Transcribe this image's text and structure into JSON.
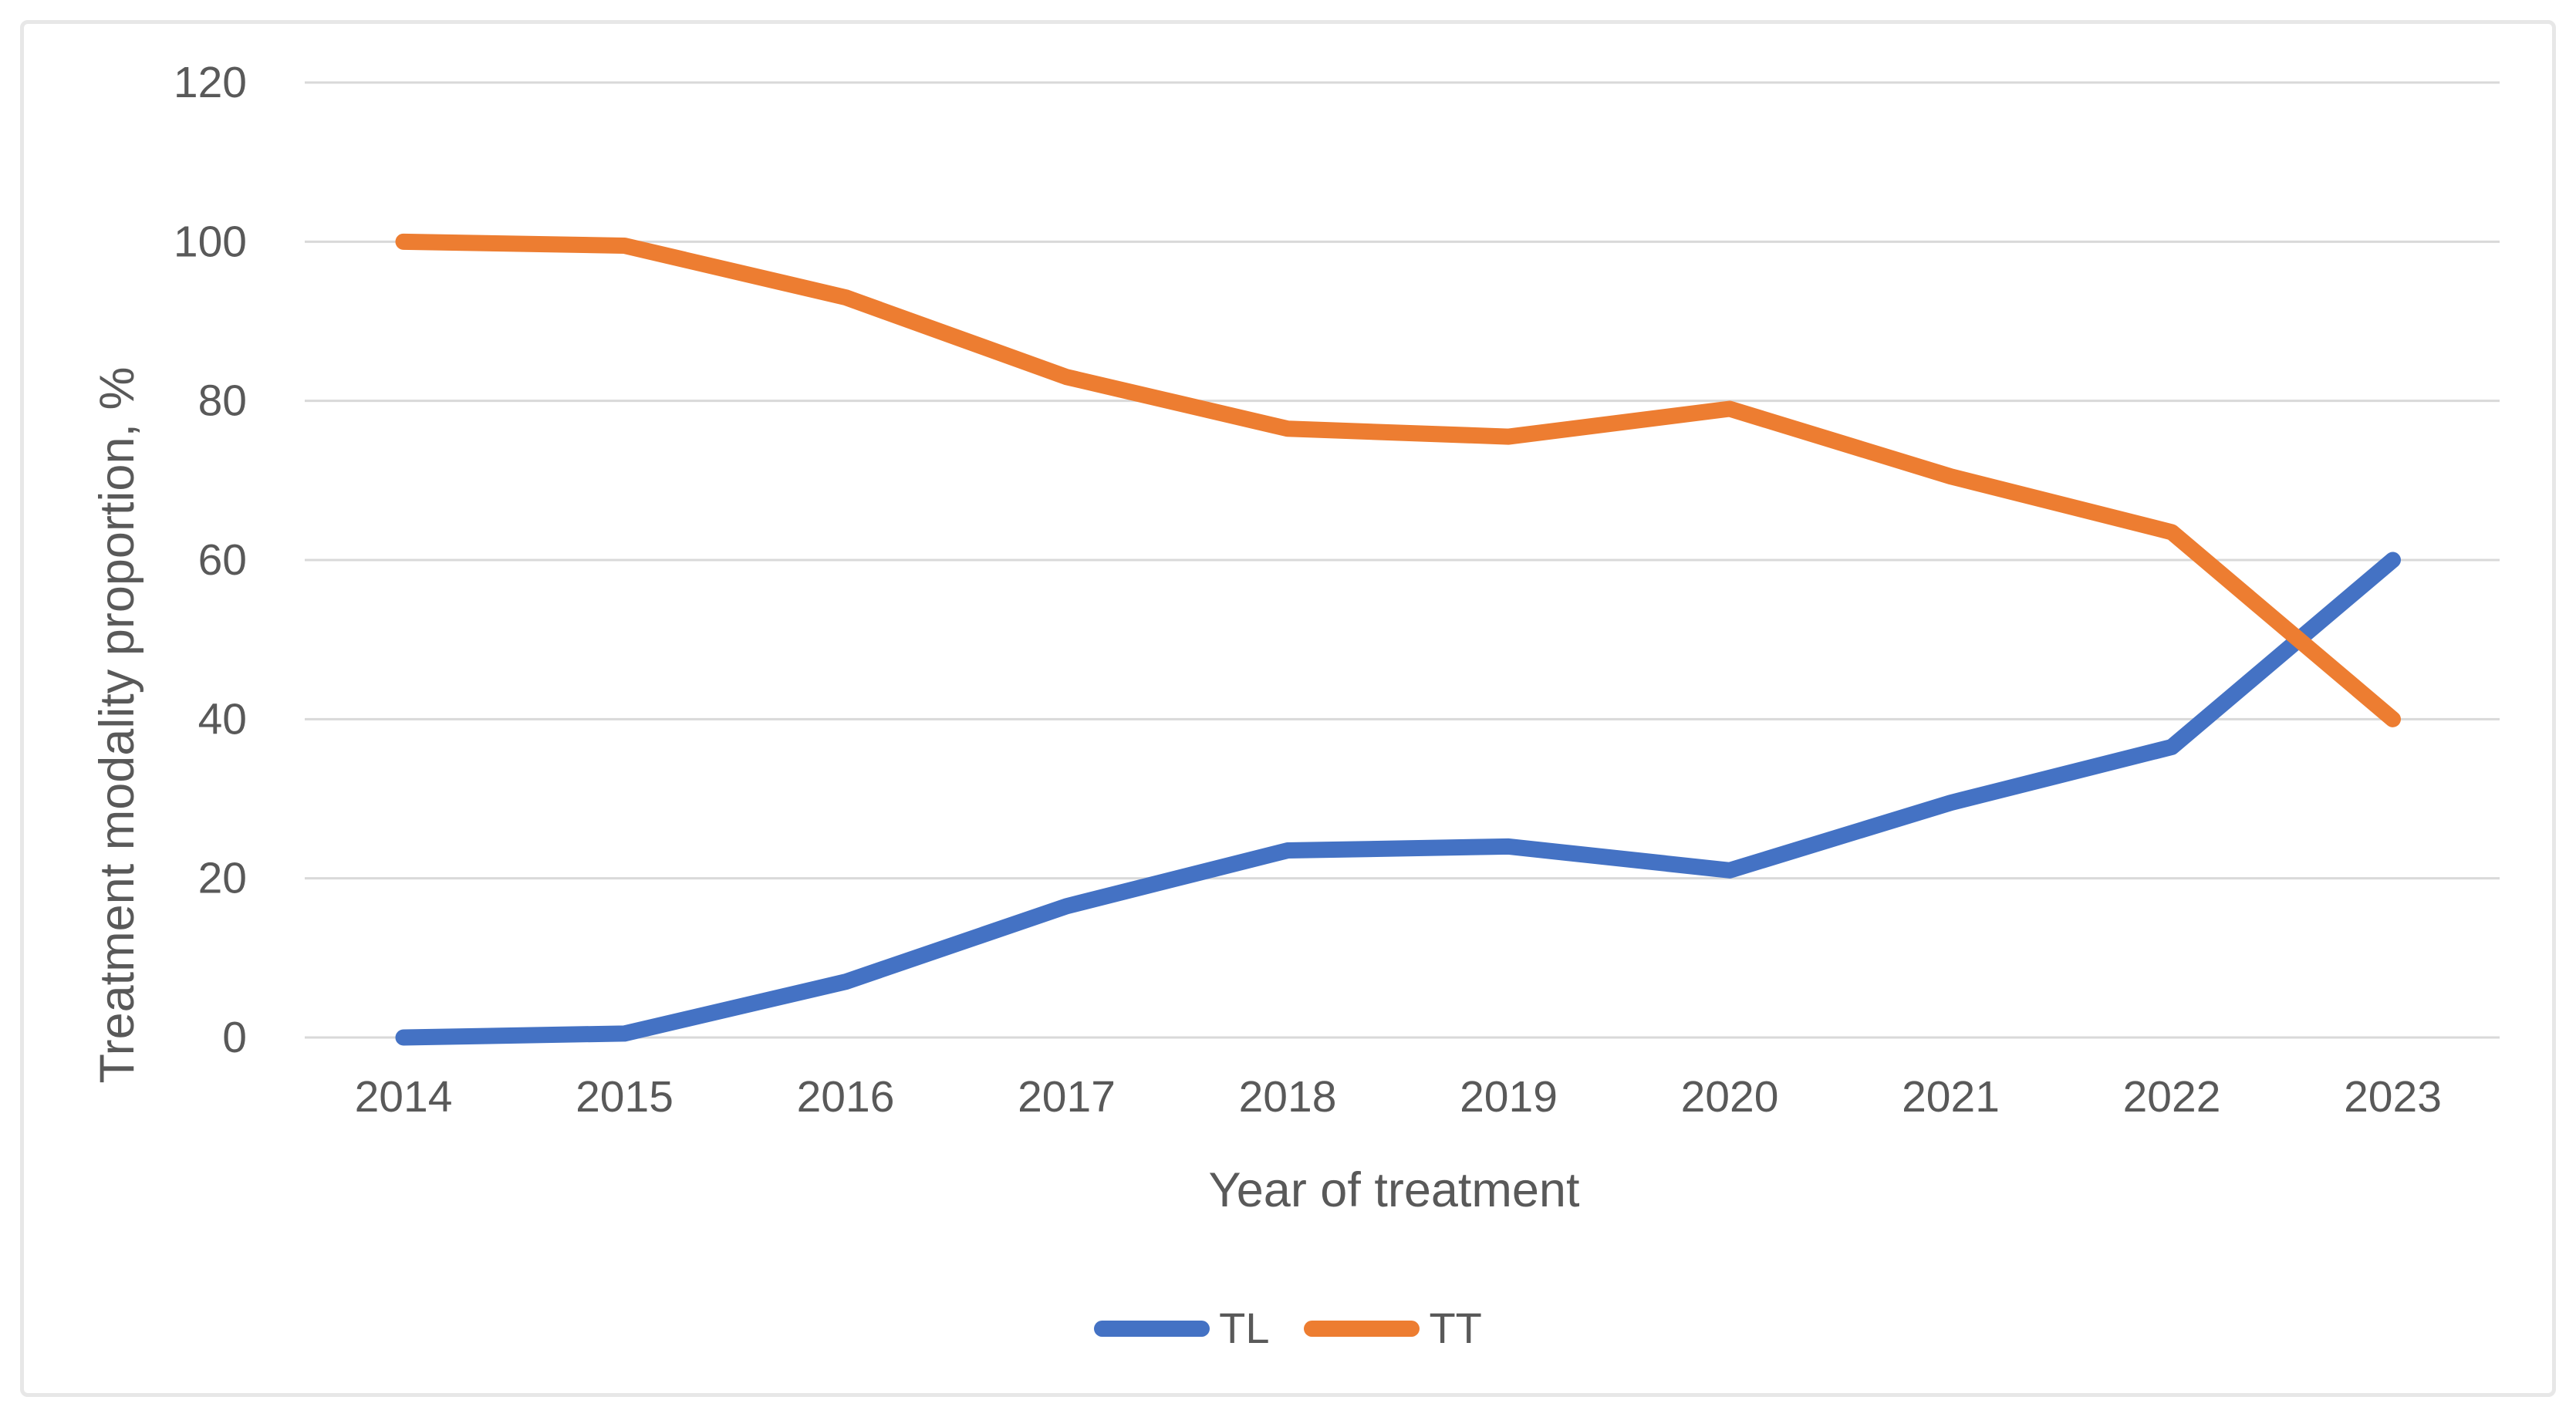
{
  "chart_data": {
    "type": "line",
    "title": "",
    "categories": [
      "2014",
      "2015",
      "2016",
      "2017",
      "2018",
      "2019",
      "2020",
      "2021",
      "2022",
      "2023"
    ],
    "series": [
      {
        "name": "TL",
        "color": "#4472C4",
        "values": [
          0,
          0.5,
          7,
          16.5,
          23.5,
          24,
          21,
          29.5,
          36.5,
          60
        ]
      },
      {
        "name": "TT",
        "color": "#ED7D31",
        "values": [
          100,
          99.5,
          93,
          83,
          76.5,
          75.5,
          79,
          70.5,
          63.5,
          40
        ]
      }
    ],
    "xlabel": "Year of treatment",
    "ylabel": "Treatment modality proportion, %",
    "ylim": [
      0,
      120
    ],
    "ytick_step": 20,
    "yticks": [
      0,
      20,
      40,
      60,
      80,
      100,
      120
    ],
    "grid": "horizontal",
    "legend_position": "bottom"
  },
  "styles": {
    "grid_color": "#D9D9D9",
    "text_color": "#595959",
    "frame_border_color": "#E7E7E7",
    "background": "#FFFFFF"
  }
}
